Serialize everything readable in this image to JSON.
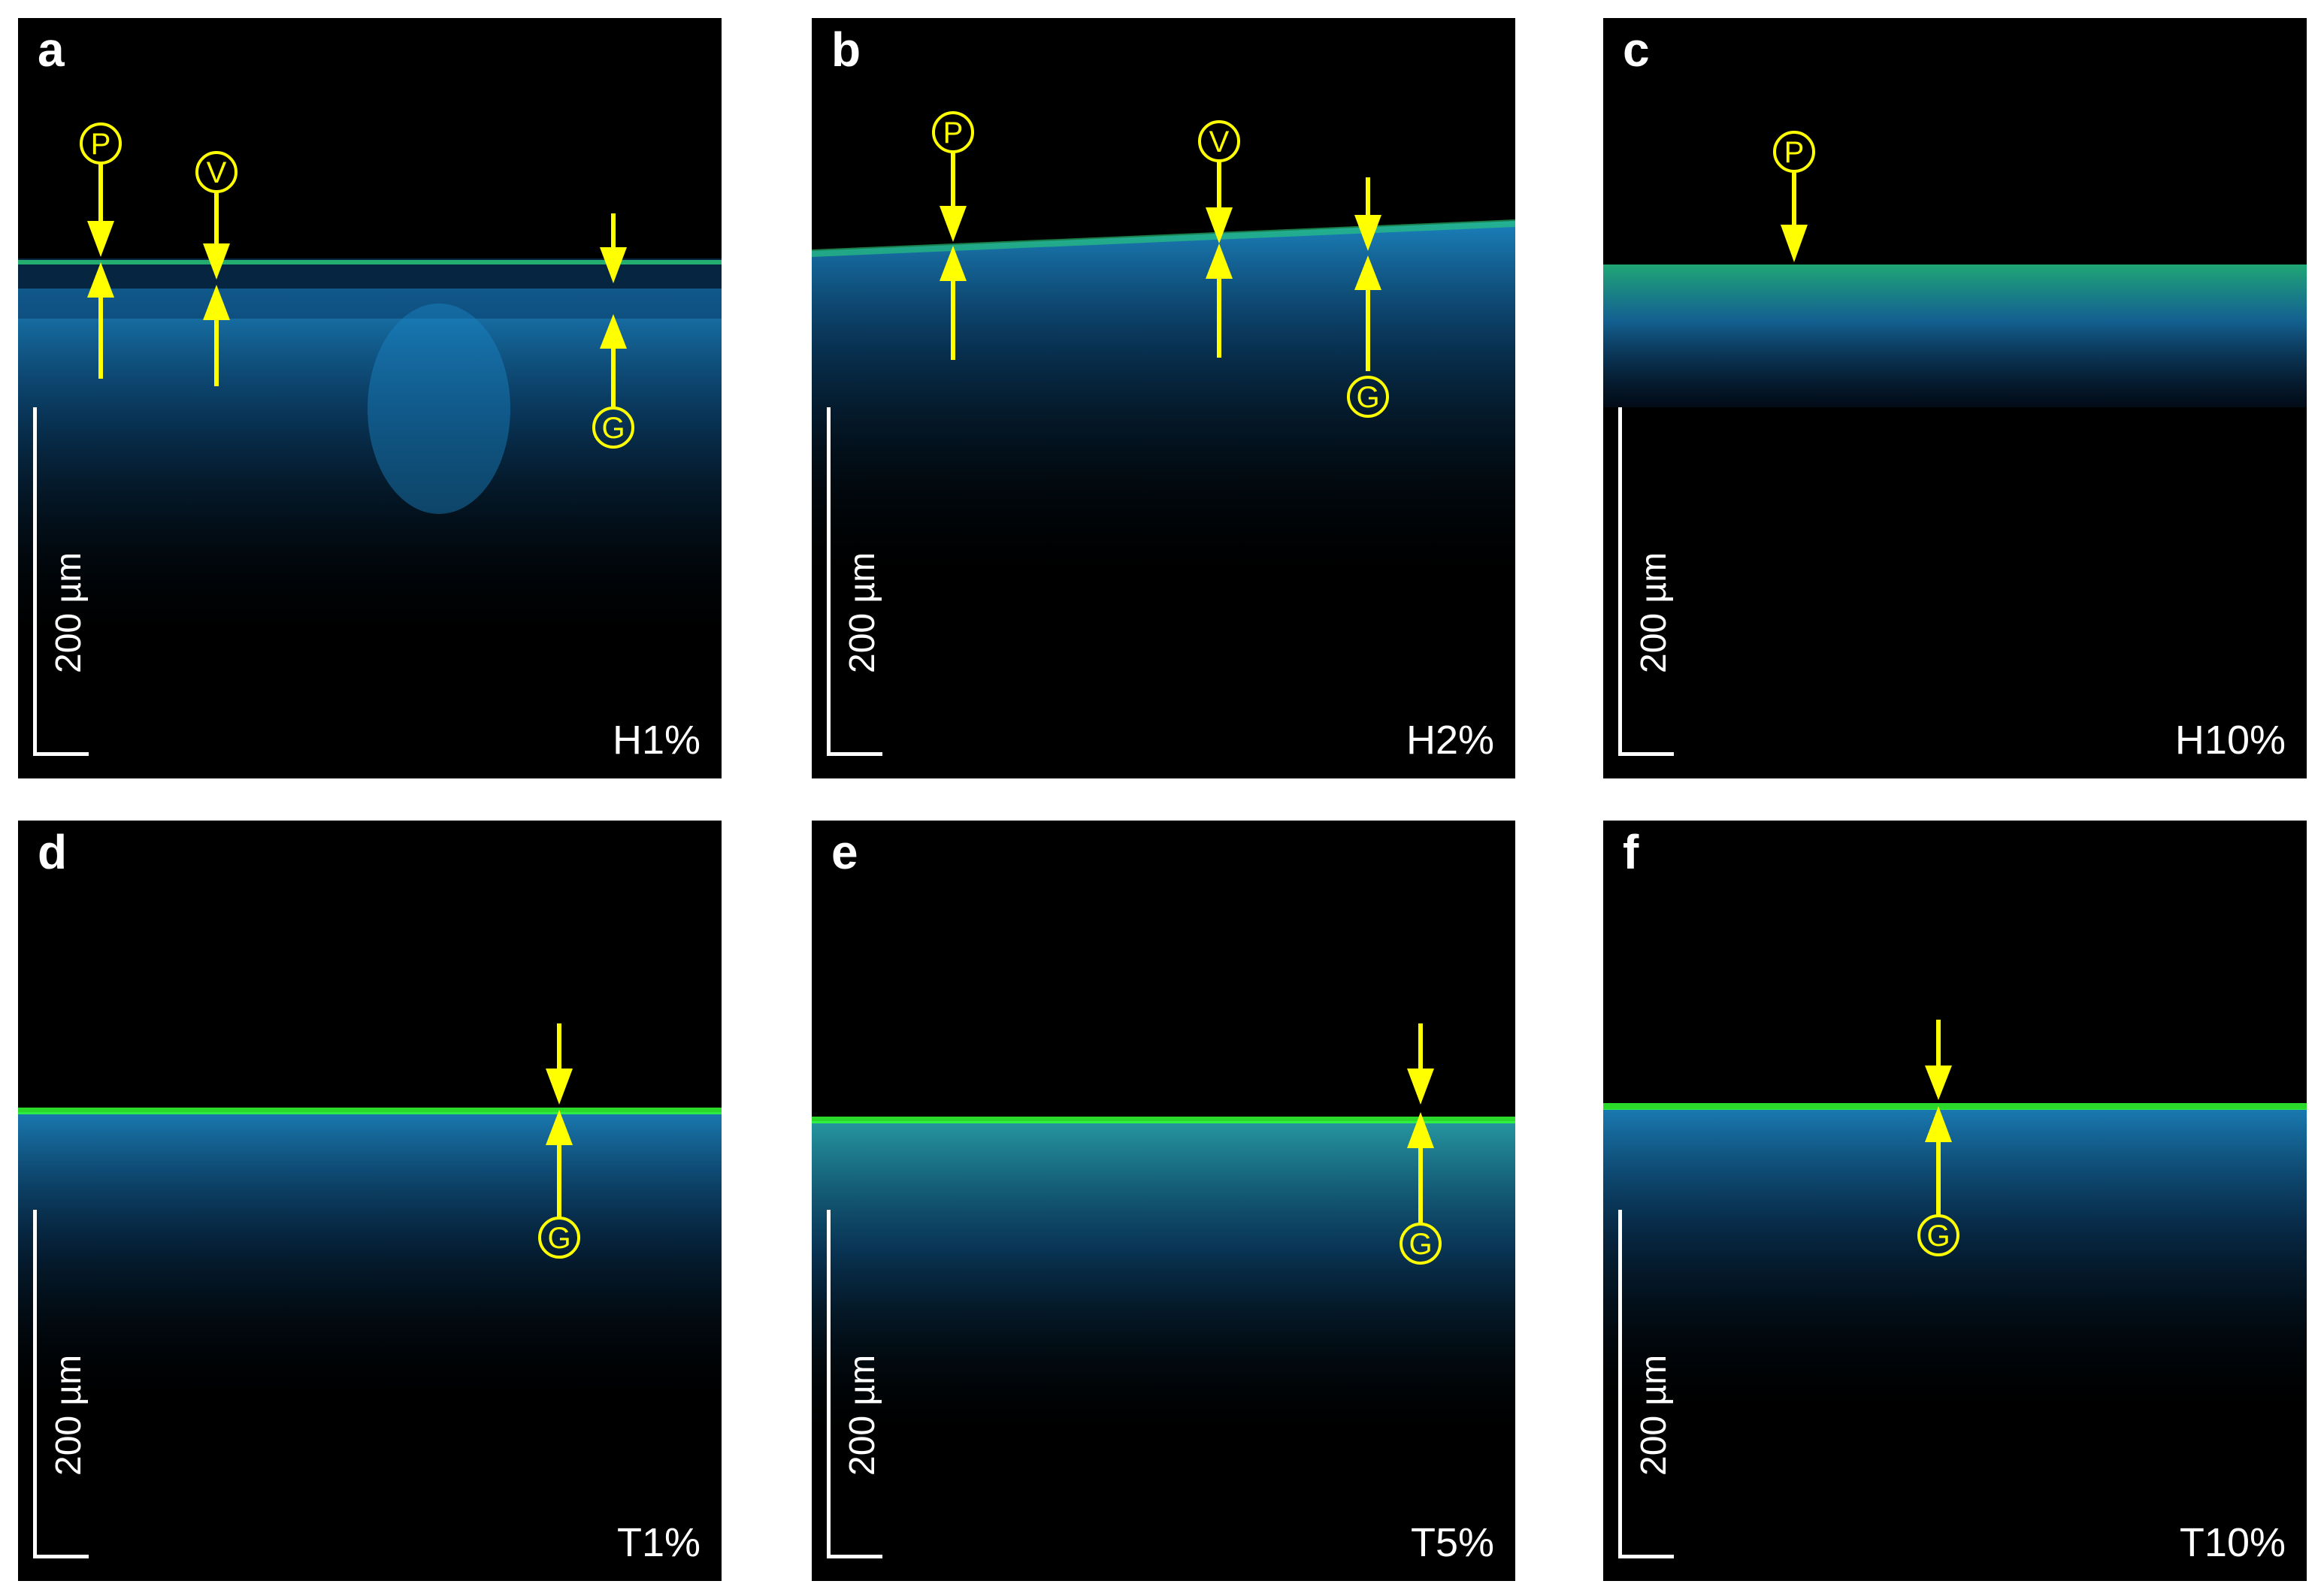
{
  "panels": [
    {
      "letter": "a",
      "condition": "H1%",
      "scale": "200 µm"
    },
    {
      "letter": "b",
      "condition": "H2%",
      "scale": "200 µm"
    },
    {
      "letter": "c",
      "condition": "H10%",
      "scale": "200 µm"
    },
    {
      "letter": "d",
      "condition": "T1%",
      "scale": "200 µm"
    },
    {
      "letter": "e",
      "condition": "T5%",
      "scale": "200 µm"
    },
    {
      "letter": "f",
      "condition": "T10%",
      "scale": "200 µm"
    }
  ],
  "markers": {
    "P": "P",
    "V": "V",
    "G": "G"
  },
  "colors": {
    "background": "#000000",
    "annotation": "#ffff00",
    "tissue": "#1e8fd0",
    "surface": "#33ff33",
    "text": "#ffffff"
  }
}
